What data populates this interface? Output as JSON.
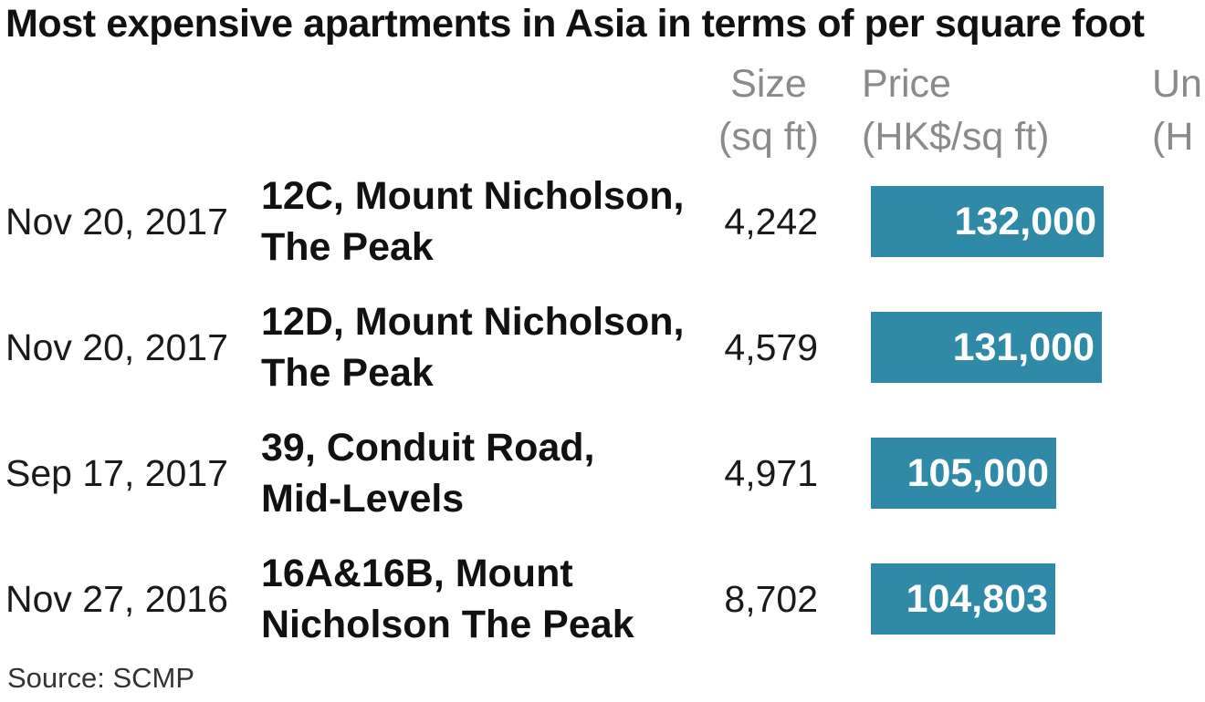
{
  "chart_data": {
    "type": "bar",
    "title": "Most expensive apartments in Asia in terms of per square foot",
    "columns": {
      "size": [
        "Size",
        "(sq ft)"
      ],
      "price": [
        "Price",
        "(HK$/sq ft)"
      ],
      "unit_partial": [
        "Un",
        "(H"
      ]
    },
    "rows": [
      {
        "date": "Nov 20, 2017",
        "location": [
          "12C, Mount Nicholson,",
          "The Peak"
        ],
        "size": "4,242",
        "price": 132000,
        "price_label": "132,000"
      },
      {
        "date": "Nov 20, 2017",
        "location": [
          "12D, Mount Nicholson,",
          "The Peak"
        ],
        "size": "4,579",
        "price": 131000,
        "price_label": "131,000"
      },
      {
        "date": "Sep 17, 2017",
        "location": [
          "39, Conduit Road,",
          "Mid-Levels"
        ],
        "size": "4,971",
        "price": 105000,
        "price_label": "105,000"
      },
      {
        "date": "Nov 27, 2016",
        "location": [
          "16A&16B, Mount",
          "Nicholson The Peak"
        ],
        "size": "8,702",
        "price": 104803,
        "price_label": "104,803"
      }
    ],
    "source": "Source: SCMP",
    "bar_color": "#2e8aa6"
  }
}
